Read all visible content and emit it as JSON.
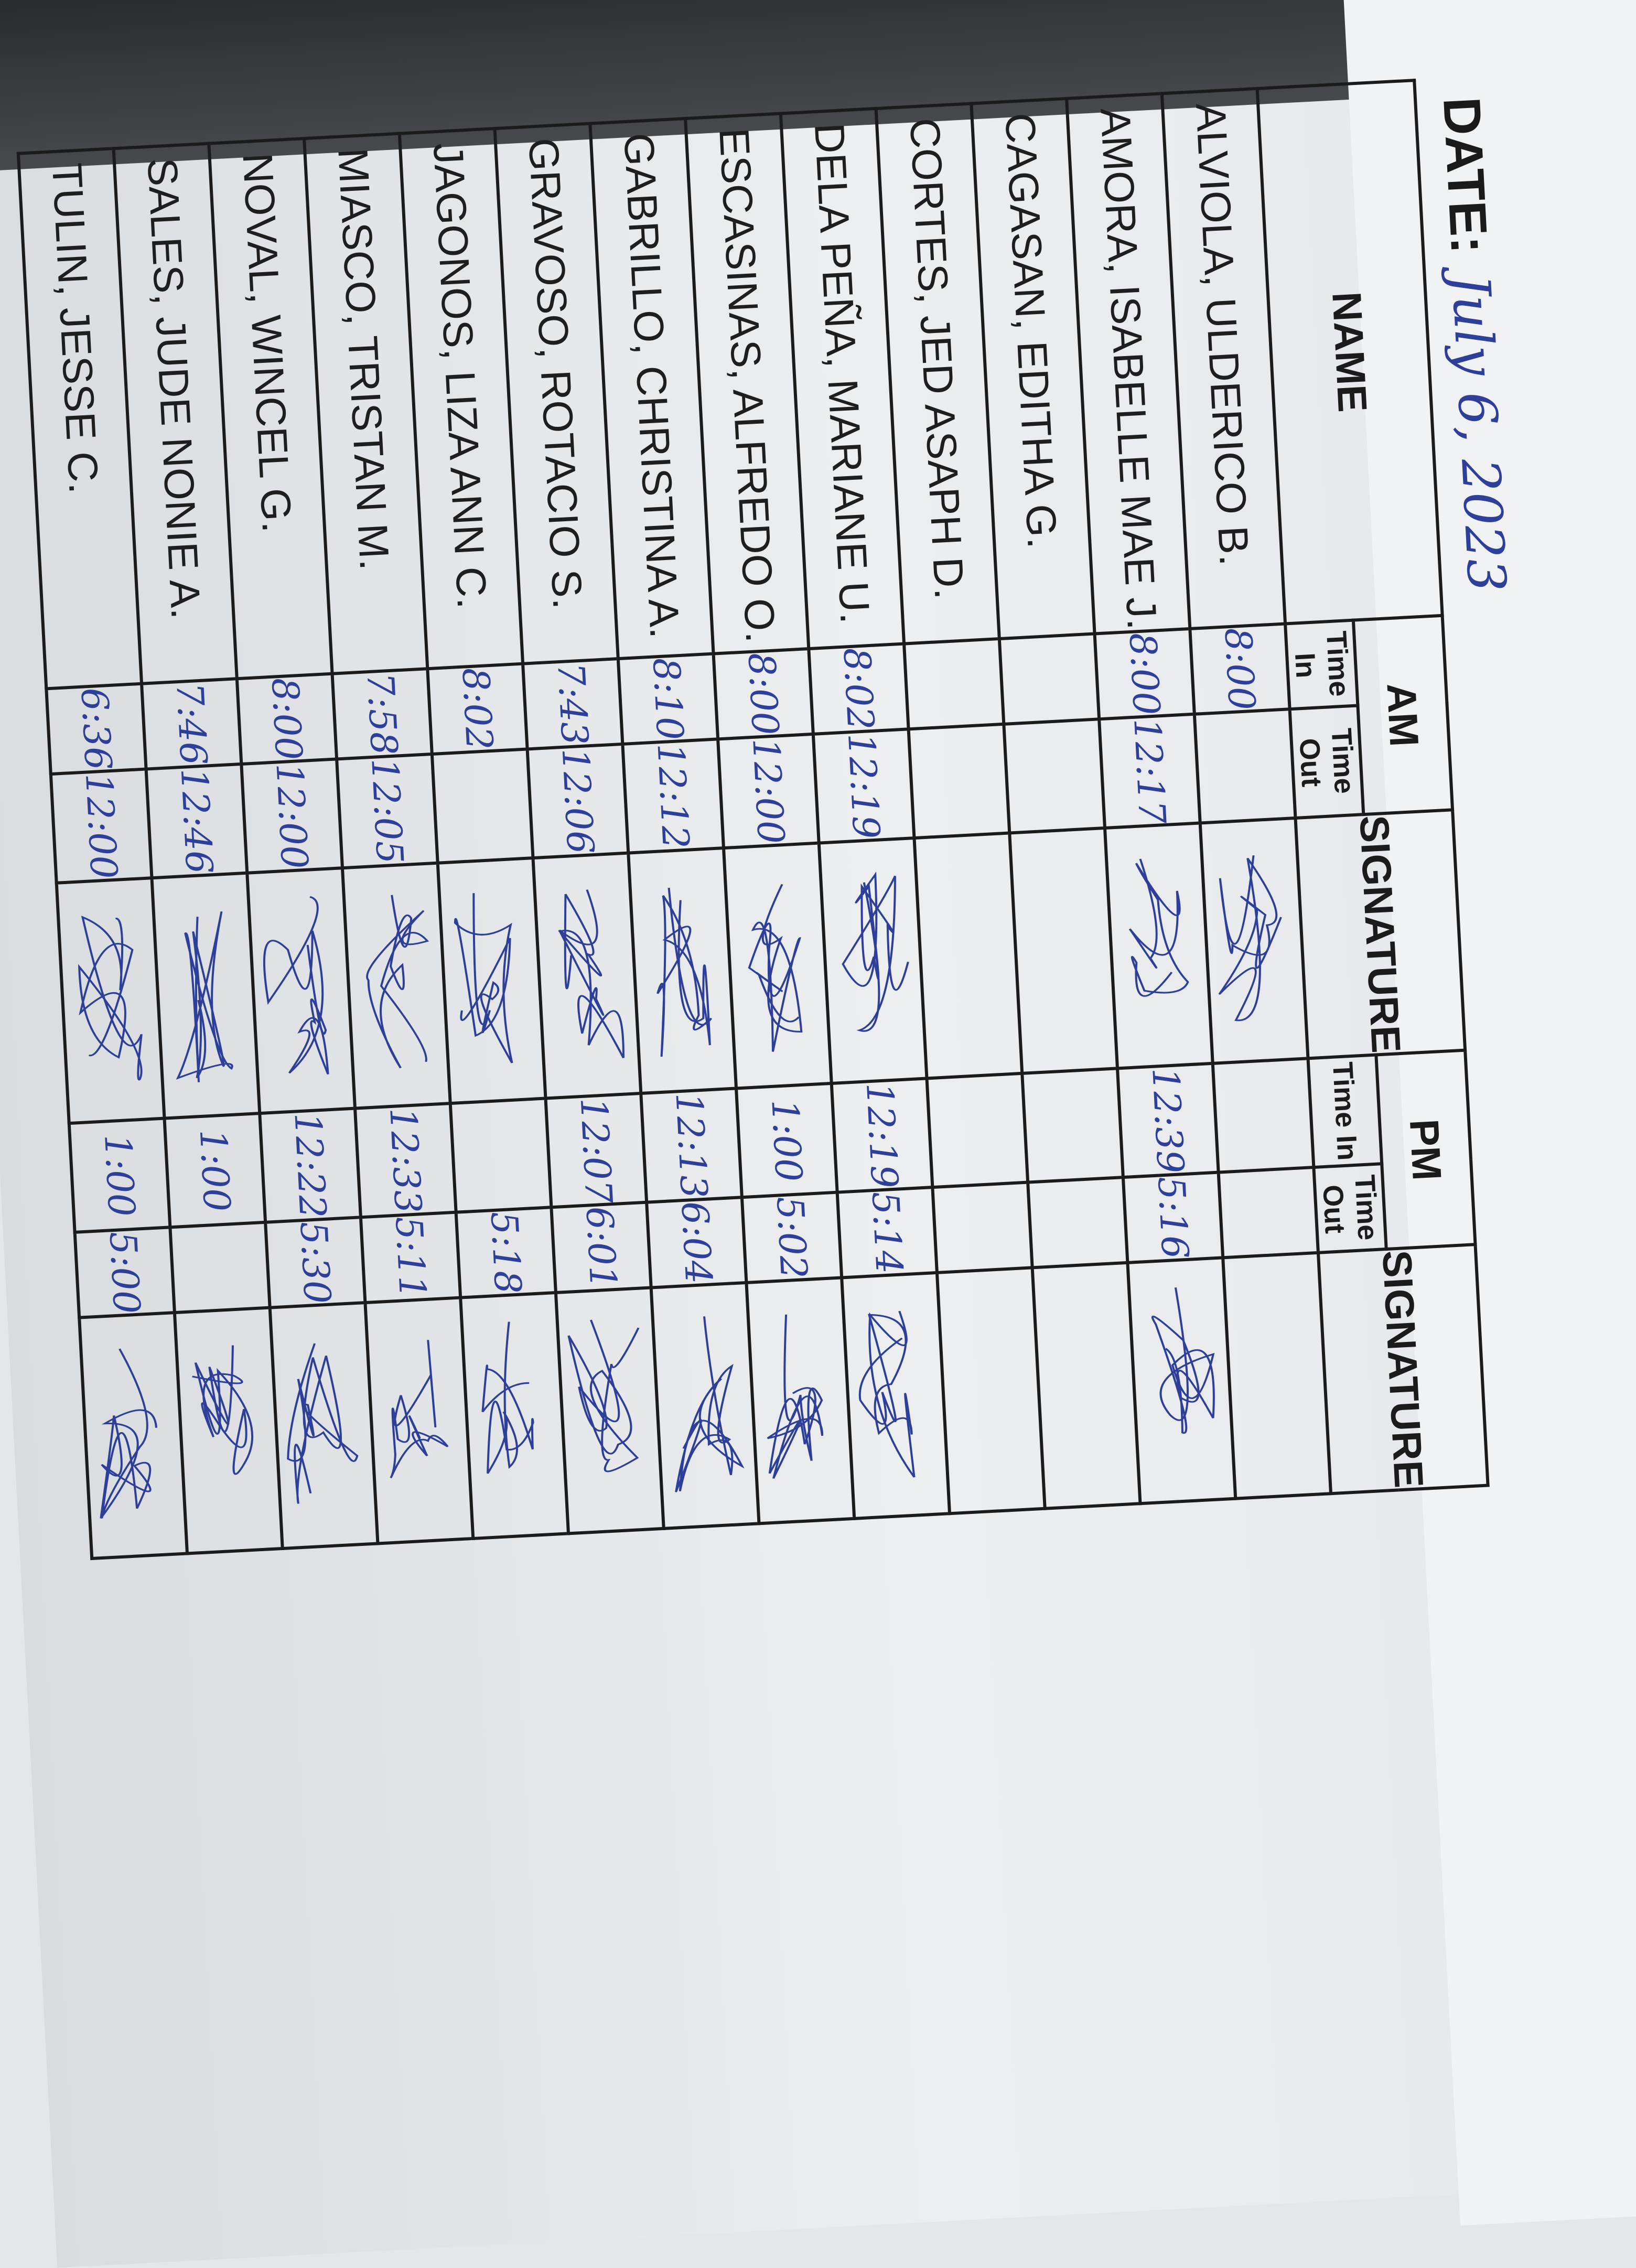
{
  "sheet": {
    "date_label": "DATE:",
    "date_value": "July 6, 2023",
    "headers": {
      "name": "NAME",
      "am": "AM",
      "pm": "PM",
      "time_in": "Time In",
      "time_out": "Time Out",
      "signature": "SIGNATURE"
    },
    "ink_color": "#2e3f9a",
    "rows": [
      {
        "name": "ALVIOLA, ULDERICO B.",
        "am_in": "8:00",
        "am_out": "",
        "am_signed": true,
        "pm_in": "",
        "pm_out": "",
        "pm_signed": false
      },
      {
        "name": "AMORA, ISABELLE MAE J.",
        "am_in": "8:00",
        "am_out": "12:17",
        "am_signed": true,
        "pm_in": "12:39",
        "pm_out": "5:16",
        "pm_signed": true
      },
      {
        "name": "CAGASAN, EDITHA G.",
        "am_in": "",
        "am_out": "",
        "am_signed": false,
        "pm_in": "",
        "pm_out": "",
        "pm_signed": false
      },
      {
        "name": "CORTES, JED ASAPH D.",
        "am_in": "",
        "am_out": "",
        "am_signed": false,
        "pm_in": "",
        "pm_out": "",
        "pm_signed": false
      },
      {
        "name": "DELA PEÑA, MARIANE U.",
        "am_in": "8:02",
        "am_out": "12:19",
        "am_signed": true,
        "pm_in": "12:19",
        "pm_out": "5:14",
        "pm_signed": true
      },
      {
        "name": "ESCASINAS, ALFREDO O.",
        "am_in": "8:00",
        "am_out": "12:00",
        "am_signed": true,
        "pm_in": "1:00",
        "pm_out": "5:02",
        "pm_signed": true
      },
      {
        "name": "GABRILLO, CHRISTINA A.",
        "am_in": "8:10",
        "am_out": "12:12",
        "am_signed": true,
        "pm_in": "12:13",
        "pm_out": "6:04",
        "pm_signed": true
      },
      {
        "name": "GRAVOSO, ROTACIO S.",
        "am_in": "7:43",
        "am_out": "12:06",
        "am_signed": true,
        "pm_in": "12:07",
        "pm_out": "6:01",
        "pm_signed": true
      },
      {
        "name": "JAGONOS, LIZA ANN C.",
        "am_in": "8:02",
        "am_out": "",
        "am_signed": true,
        "pm_in": "",
        "pm_out": "5:18",
        "pm_signed": true
      },
      {
        "name": "MIASCO, TRISTAN M.",
        "am_in": "7:58",
        "am_out": "12:05",
        "am_signed": true,
        "pm_in": "12:33",
        "pm_out": "5:11",
        "pm_signed": true
      },
      {
        "name": "NOVAL, WINCEL G.",
        "am_in": "8:00",
        "am_out": "12:00",
        "am_signed": true,
        "pm_in": "12:22",
        "pm_out": "5:30",
        "pm_signed": true
      },
      {
        "name": "SALES, JUDE NONIE A.",
        "am_in": "7:46",
        "am_out": "12:46",
        "am_signed": true,
        "pm_in": "1:00",
        "pm_out": "",
        "pm_signed": true
      },
      {
        "name": "TULIN, JESSE C.",
        "am_in": "6:36",
        "am_out": "12:00",
        "am_signed": true,
        "pm_in": "1:00",
        "pm_out": "5:00",
        "pm_signed": true
      }
    ]
  }
}
